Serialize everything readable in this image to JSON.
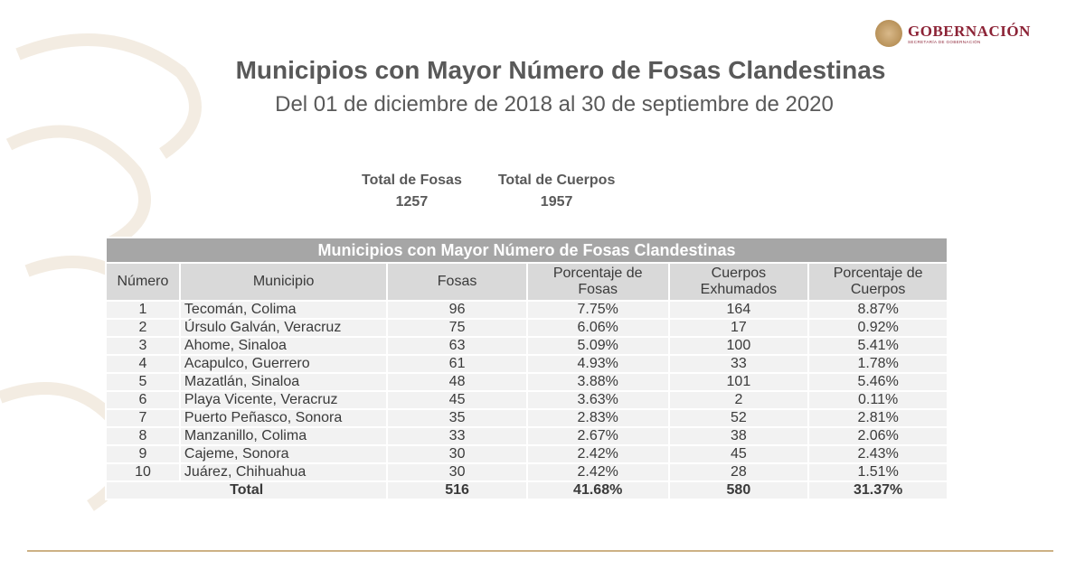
{
  "header": {
    "logo_text": "GOBERNACIÓN",
    "logo_subtext": "SECRETARÍA DE GOBERNACIÓN",
    "title": "Municipios con Mayor Número de Fosas Clandestinas",
    "subtitle": "Del 01 de diciembre de 2018 al 30 de septiembre de 2020"
  },
  "summary": [
    {
      "label": "Total de Fosas",
      "value": "1257"
    },
    {
      "label": "Total de Cuerpos",
      "value": "1957"
    }
  ],
  "table": {
    "title": "Municipios con Mayor Número de Fosas Clandestinas",
    "headers": [
      "Número",
      "Municipio",
      "Fosas",
      "Porcentaje de Fosas",
      "Cuerpos Exhumados",
      "Porcentaje de Cuerpos"
    ],
    "rows": [
      [
        "1",
        "Tecomán, Colima",
        "96",
        "7.75%",
        "164",
        "8.87%"
      ],
      [
        "2",
        "Úrsulo Galván, Veracruz",
        "75",
        "6.06%",
        "17",
        "0.92%"
      ],
      [
        "3",
        "Ahome, Sinaloa",
        "63",
        "5.09%",
        "100",
        "5.41%"
      ],
      [
        "4",
        "Acapulco, Guerrero",
        "61",
        "4.93%",
        "33",
        "1.78%"
      ],
      [
        "5",
        "Mazatlán, Sinaloa",
        "48",
        "3.88%",
        "101",
        "5.46%"
      ],
      [
        "6",
        "Playa Vicente, Veracruz",
        "45",
        "3.63%",
        "2",
        "0.11%"
      ],
      [
        "7",
        "Puerto Peñasco, Sonora",
        "35",
        "2.83%",
        "52",
        "2.81%"
      ],
      [
        "8",
        "Manzanillo, Colima",
        "33",
        "2.67%",
        "38",
        "2.06%"
      ],
      [
        "9",
        "Cajeme, Sonora",
        "30",
        "2.42%",
        "45",
        "2.43%"
      ],
      [
        "10",
        "Juárez, Chihuahua",
        "30",
        "2.42%",
        "28",
        "1.51%"
      ]
    ],
    "total": [
      "Total",
      "516",
      "41.68%",
      "580",
      "31.37%"
    ]
  }
}
